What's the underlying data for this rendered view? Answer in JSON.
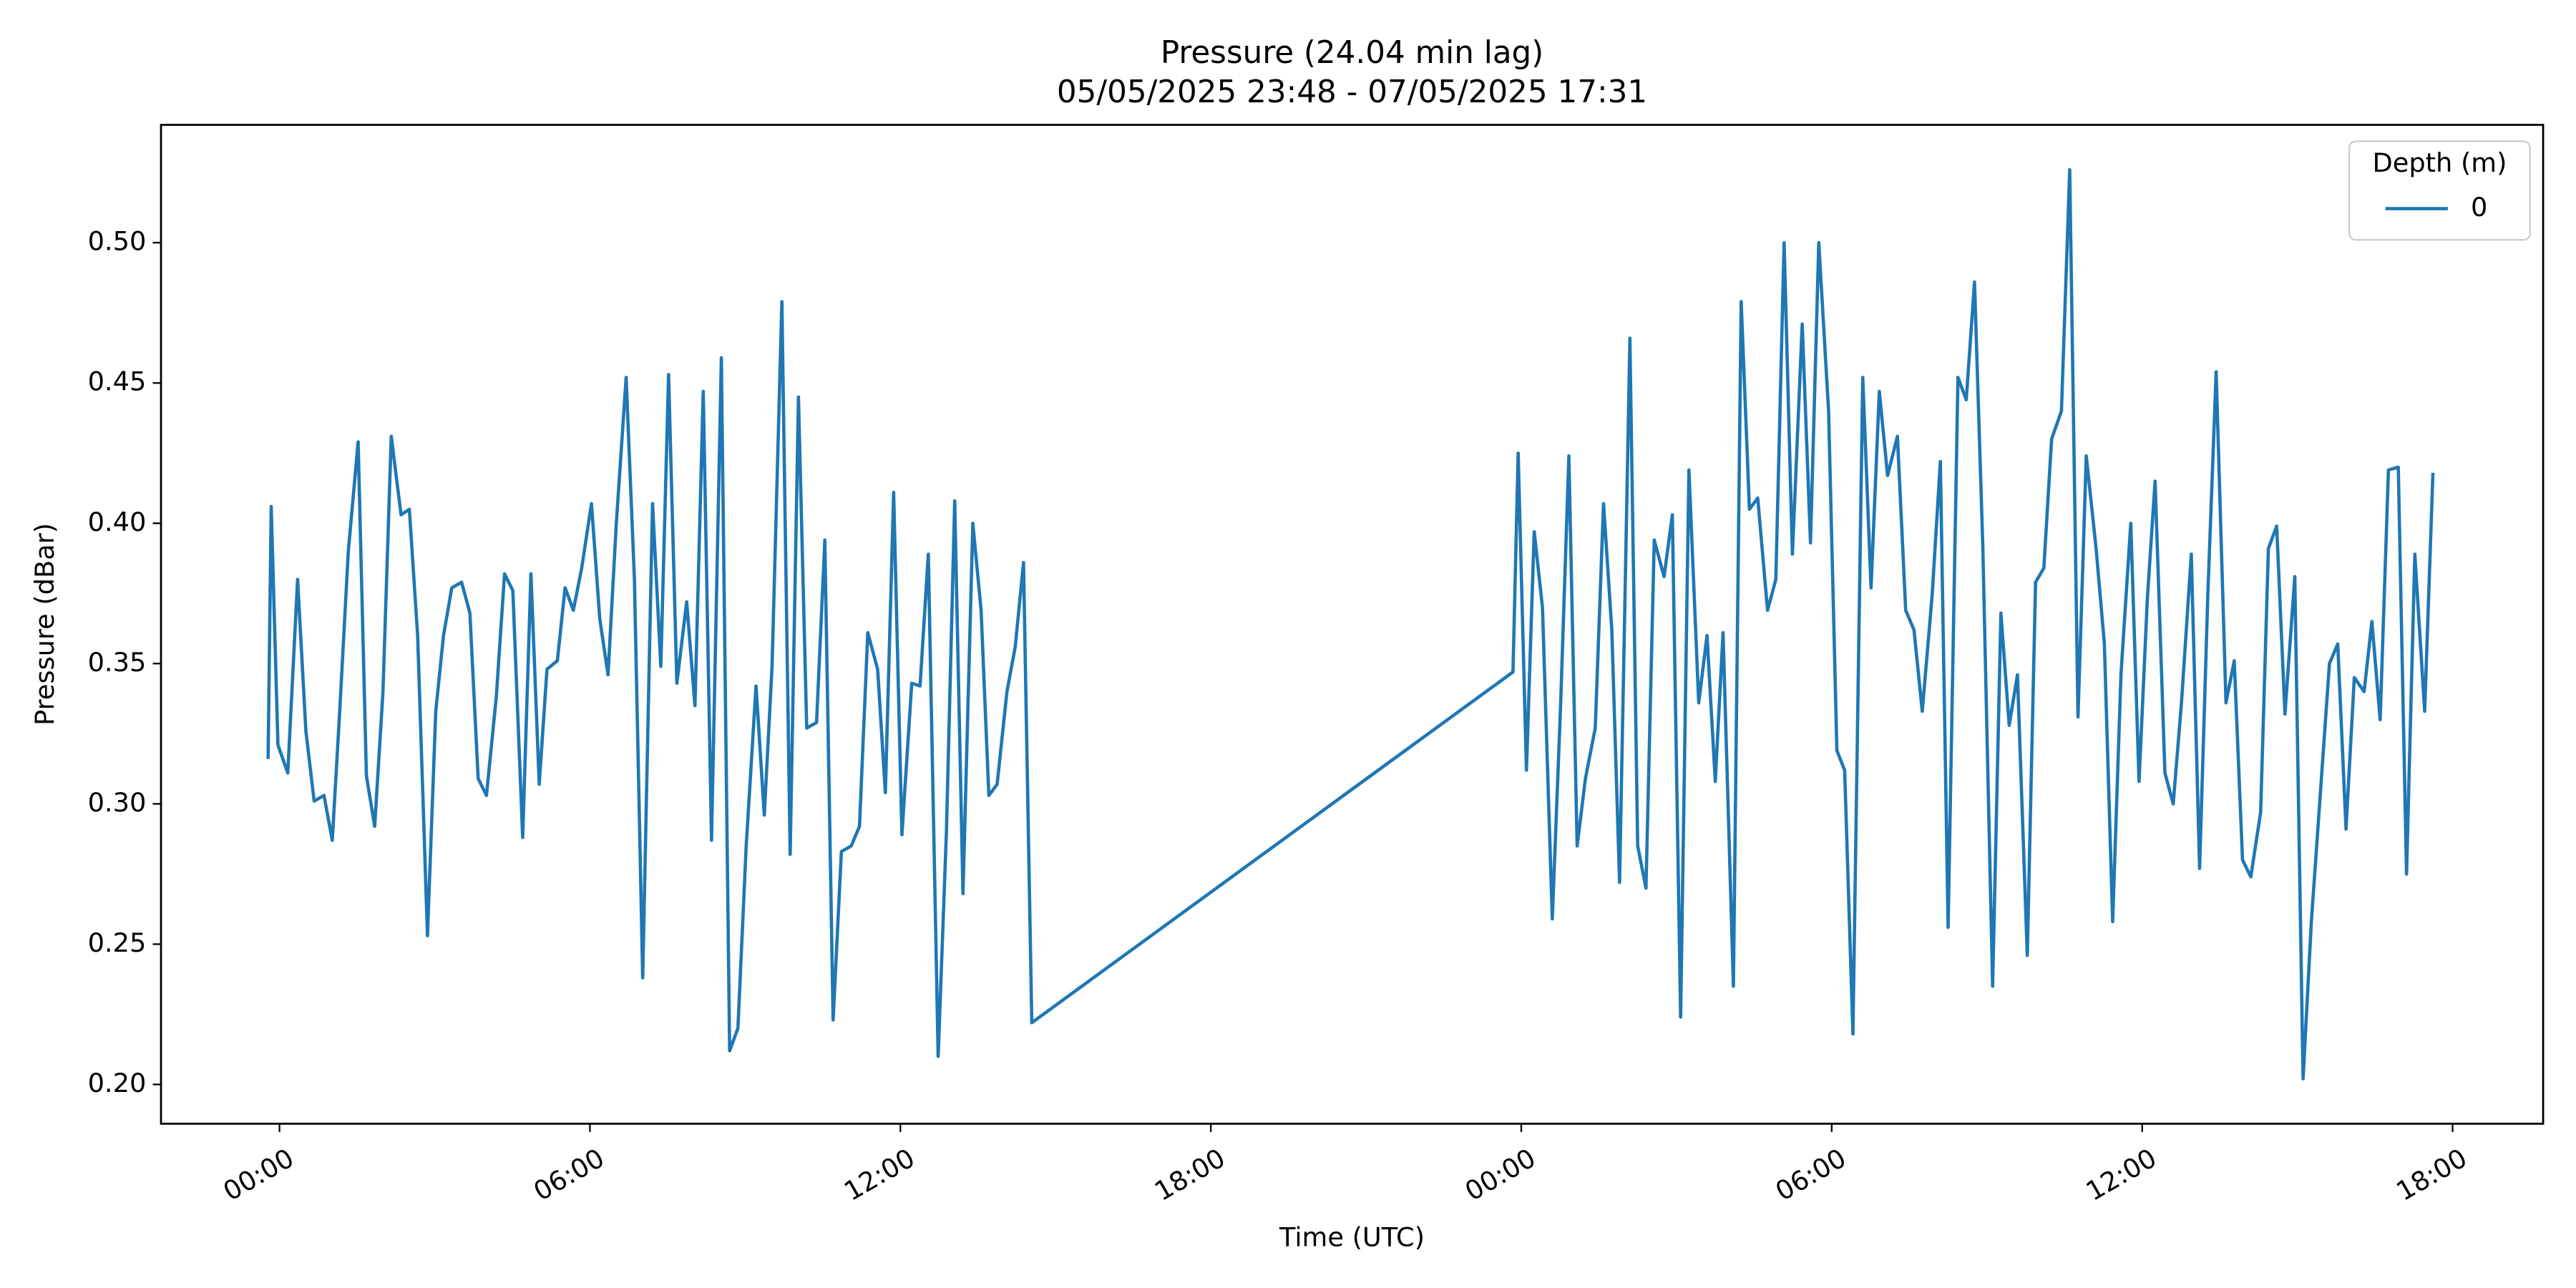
{
  "chart_data": {
    "type": "line",
    "title": "Pressure (24.04 min lag)",
    "subtitle": "05/05/2025 23:48 - 07/05/2025 17:31",
    "x_label": "Time (UTC)",
    "y_label": "Pressure (dBar)",
    "legend_title": "Depth (m)",
    "legend_position": "upper right",
    "grid": false,
    "xlim": [
      -2.29,
      43.75
    ],
    "ylim": [
      0.186,
      0.542
    ],
    "xticks": [
      {
        "value": 0,
        "label": "00:00"
      },
      {
        "value": 6,
        "label": "06:00"
      },
      {
        "value": 12,
        "label": "12:00"
      },
      {
        "value": 18,
        "label": "18:00"
      },
      {
        "value": 24,
        "label": "00:00"
      },
      {
        "value": 30,
        "label": "06:00"
      },
      {
        "value": 36,
        "label": "12:00"
      },
      {
        "value": 42,
        "label": "18:00"
      }
    ],
    "yticks": [
      {
        "value": 0.2,
        "label": "0.20"
      },
      0.25,
      {
        "value": 0.3,
        "label": "0.30"
      },
      0.35,
      {
        "value": 0.4,
        "label": "0.40"
      },
      0.45,
      {
        "value": 0.5,
        "label": "0.50"
      }
    ],
    "x": [
      -0.22,
      -0.16,
      -0.03,
      0.16,
      0.35,
      0.51,
      0.67,
      0.86,
      1.02,
      1.17,
      1.33,
      1.52,
      1.68,
      1.84,
      2.0,
      2.16,
      2.35,
      2.51,
      2.67,
      2.86,
      3.02,
      3.17,
      3.33,
      3.52,
      3.68,
      3.84,
      4.0,
      4.19,
      4.35,
      4.51,
      4.7,
      4.86,
      5.02,
      5.17,
      5.37,
      5.52,
      5.68,
      5.84,
      6.03,
      6.19,
      6.35,
      6.51,
      6.7,
      6.86,
      7.02,
      7.21,
      7.37,
      7.52,
      7.68,
      7.87,
      8.03,
      8.19,
      8.35,
      8.54,
      8.7,
      8.86,
      9.02,
      9.21,
      9.37,
      9.52,
      9.71,
      9.87,
      10.03,
      10.19,
      10.38,
      10.54,
      10.7,
      10.86,
      11.05,
      11.21,
      11.37,
      11.56,
      11.71,
      11.87,
      12.03,
      12.22,
      12.38,
      12.54,
      12.73,
      12.89,
      13.05,
      13.21,
      13.4,
      13.56,
      13.71,
      13.87,
      14.06,
      14.22,
      14.38,
      14.54,
      23.84,
      23.94,
      24.1,
      24.25,
      24.41,
      24.6,
      24.76,
      24.92,
      25.08,
      25.24,
      25.43,
      25.59,
      25.75,
      25.9,
      26.1,
      26.25,
      26.41,
      26.57,
      26.76,
      26.92,
      27.08,
      27.24,
      27.43,
      27.59,
      27.75,
      27.9,
      28.1,
      28.25,
      28.41,
      28.57,
      28.76,
      28.92,
      29.08,
      29.24,
      29.43,
      29.59,
      29.75,
      29.94,
      30.1,
      30.25,
      30.41,
      30.6,
      30.76,
      30.92,
      31.08,
      31.27,
      31.43,
      31.59,
      31.75,
      31.94,
      32.1,
      32.25,
      32.44,
      32.6,
      32.76,
      32.92,
      33.11,
      33.27,
      33.43,
      33.59,
      33.78,
      33.94,
      34.1,
      34.25,
      34.44,
      34.6,
      34.76,
      34.92,
      35.11,
      35.27,
      35.43,
      35.59,
      35.78,
      35.94,
      36.1,
      36.25,
      36.44,
      36.6,
      36.76,
      36.95,
      37.11,
      37.27,
      37.43,
      37.62,
      37.78,
      37.94,
      38.1,
      38.29,
      38.44,
      38.6,
      38.76,
      38.95,
      39.11,
      39.27,
      39.43,
      39.62,
      39.78,
      39.94,
      40.1,
      40.29,
      40.44,
      40.6,
      40.76,
      40.95,
      41.11,
      41.27,
      41.46,
      41.62
    ],
    "series": [
      {
        "name": "0",
        "color": "#1f77b4",
        "values": [
          0.316,
          0.406,
          0.321,
          0.311,
          0.38,
          0.326,
          0.301,
          0.303,
          0.287,
          0.335,
          0.39,
          0.429,
          0.31,
          0.292,
          0.34,
          0.431,
          0.403,
          0.405,
          0.36,
          0.253,
          0.333,
          0.36,
          0.377,
          0.379,
          0.368,
          0.309,
          0.303,
          0.338,
          0.382,
          0.376,
          0.288,
          0.382,
          0.307,
          0.348,
          0.351,
          0.377,
          0.369,
          0.384,
          0.407,
          0.366,
          0.346,
          0.4,
          0.452,
          0.38,
          0.238,
          0.407,
          0.349,
          0.453,
          0.343,
          0.372,
          0.335,
          0.447,
          0.287,
          0.459,
          0.212,
          0.22,
          0.285,
          0.342,
          0.296,
          0.349,
          0.479,
          0.282,
          0.445,
          0.327,
          0.329,
          0.394,
          0.223,
          0.283,
          0.285,
          0.292,
          0.361,
          0.348,
          0.304,
          0.411,
          0.289,
          0.343,
          0.342,
          0.389,
          0.21,
          0.29,
          0.408,
          0.268,
          0.4,
          0.369,
          0.303,
          0.307,
          0.34,
          0.356,
          0.386,
          0.222,
          0.347,
          0.425,
          0.312,
          0.397,
          0.37,
          0.259,
          0.335,
          0.424,
          0.285,
          0.309,
          0.327,
          0.407,
          0.362,
          0.272,
          0.466,
          0.285,
          0.27,
          0.394,
          0.381,
          0.403,
          0.224,
          0.419,
          0.336,
          0.36,
          0.308,
          0.361,
          0.235,
          0.479,
          0.405,
          0.409,
          0.369,
          0.38,
          0.5,
          0.389,
          0.471,
          0.393,
          0.5,
          0.44,
          0.319,
          0.312,
          0.218,
          0.452,
          0.377,
          0.447,
          0.417,
          0.431,
          0.369,
          0.362,
          0.333,
          0.374,
          0.422,
          0.256,
          0.452,
          0.444,
          0.486,
          0.392,
          0.235,
          0.368,
          0.328,
          0.346,
          0.246,
          0.379,
          0.384,
          0.43,
          0.44,
          0.526,
          0.331,
          0.424,
          0.391,
          0.357,
          0.258,
          0.346,
          0.4,
          0.308,
          0.373,
          0.415,
          0.311,
          0.3,
          0.336,
          0.389,
          0.277,
          0.375,
          0.454,
          0.336,
          0.351,
          0.28,
          0.274,
          0.297,
          0.391,
          0.399,
          0.332,
          0.381,
          0.202,
          0.258,
          0.3,
          0.35,
          0.357,
          0.291,
          0.345,
          0.34,
          0.365,
          0.33,
          0.419,
          0.42,
          0.275,
          0.389,
          0.333,
          0.418
        ]
      }
    ]
  }
}
